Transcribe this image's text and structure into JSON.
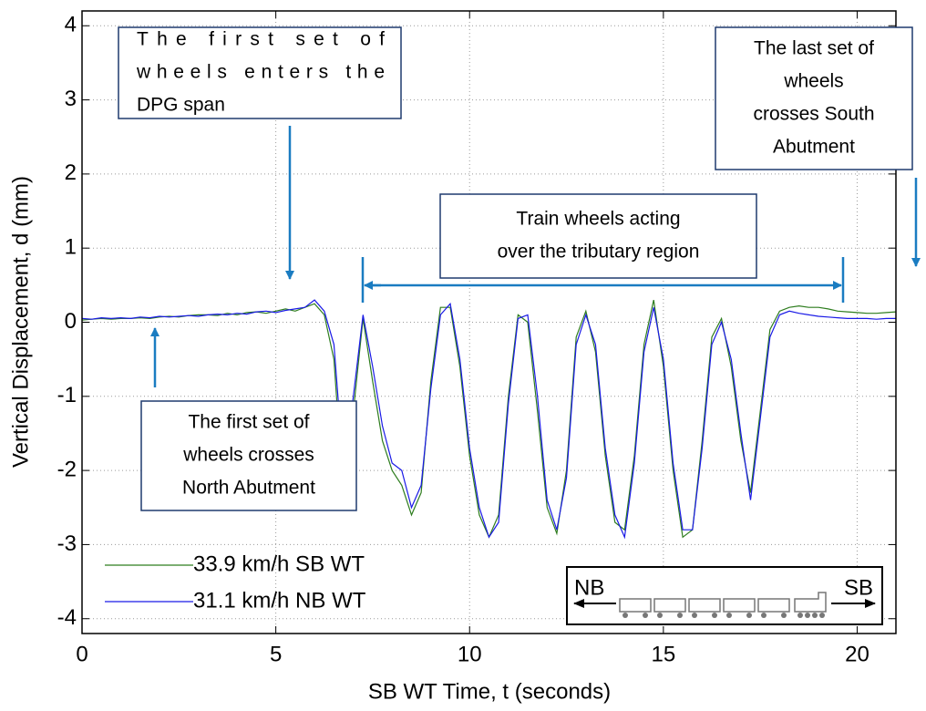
{
  "chart_data": {
    "type": "line",
    "xlabel": "SB WT Time, t (seconds)",
    "ylabel": "Vertical Displacement, d (mm)",
    "xlim": [
      0,
      21
    ],
    "ylim": [
      -4.2,
      4.2
    ],
    "xticks": [
      0,
      5,
      10,
      15,
      20
    ],
    "yticks": [
      -4,
      -3,
      -2,
      -1,
      0,
      1,
      2,
      3,
      4
    ],
    "grid": true,
    "legend": "lower left",
    "x": [
      0,
      0.25,
      0.5,
      0.75,
      1,
      1.25,
      1.5,
      1.75,
      2,
      2.25,
      2.5,
      2.75,
      3,
      3.25,
      3.5,
      3.75,
      4,
      4.25,
      4.5,
      4.75,
      5,
      5.25,
      5.5,
      5.75,
      6,
      6.25,
      6.5,
      6.75,
      7,
      7.25,
      7.5,
      7.75,
      8,
      8.25,
      8.5,
      8.75,
      9,
      9.25,
      9.5,
      9.75,
      10,
      10.25,
      10.5,
      10.75,
      11,
      11.25,
      11.5,
      11.75,
      12,
      12.25,
      12.5,
      12.75,
      13,
      13.25,
      13.5,
      13.75,
      14,
      14.25,
      14.5,
      14.75,
      15,
      15.25,
      15.5,
      15.75,
      16,
      16.25,
      16.5,
      16.75,
      17,
      17.25,
      17.5,
      17.75,
      18,
      18.25,
      18.5,
      18.75,
      19,
      19.25,
      19.5,
      19.75,
      20,
      20.25,
      20.5,
      20.75,
      21
    ],
    "series": [
      {
        "name": "33.9 km/h SB WT",
        "color": "#2e7d1e",
        "values": [
          0.03,
          0.04,
          0.05,
          0.04,
          0.05,
          0.05,
          0.06,
          0.05,
          0.07,
          0.08,
          0.07,
          0.09,
          0.1,
          0.1,
          0.09,
          0.12,
          0.1,
          0.13,
          0.14,
          0.12,
          0.15,
          0.18,
          0.15,
          0.2,
          0.25,
          0.1,
          -0.5,
          -2.4,
          -1.2,
          0.05,
          -0.8,
          -1.6,
          -2.0,
          -2.2,
          -2.6,
          -2.3,
          -0.8,
          0.2,
          0.2,
          -0.6,
          -1.8,
          -2.6,
          -2.9,
          -2.6,
          -1.0,
          0.1,
          0.0,
          -1.2,
          -2.5,
          -2.85,
          -2.0,
          -0.2,
          0.15,
          -0.4,
          -1.8,
          -2.7,
          -2.8,
          -1.8,
          -0.3,
          0.3,
          -0.6,
          -2.0,
          -2.9,
          -2.8,
          -1.6,
          -0.2,
          0.05,
          -0.6,
          -1.6,
          -2.3,
          -1.2,
          -0.1,
          0.15,
          0.2,
          0.22,
          0.2,
          0.2,
          0.18,
          0.15,
          0.14,
          0.13,
          0.12,
          0.12,
          0.13,
          0.14
        ]
      },
      {
        "name": "31.1 km/h NB WT",
        "color": "#1a1ae6",
        "values": [
          0.05,
          0.04,
          0.06,
          0.05,
          0.06,
          0.05,
          0.07,
          0.06,
          0.08,
          0.07,
          0.08,
          0.09,
          0.08,
          0.1,
          0.11,
          0.1,
          0.12,
          0.11,
          0.14,
          0.15,
          0.13,
          0.16,
          0.18,
          0.2,
          0.3,
          0.15,
          -0.3,
          -2.0,
          -1.0,
          0.1,
          -0.6,
          -1.4,
          -1.9,
          -2.0,
          -2.5,
          -2.2,
          -0.9,
          0.1,
          0.25,
          -0.5,
          -1.7,
          -2.5,
          -2.9,
          -2.7,
          -1.1,
          0.05,
          0.1,
          -1.0,
          -2.4,
          -2.8,
          -2.1,
          -0.3,
          0.1,
          -0.3,
          -1.7,
          -2.6,
          -2.9,
          -1.9,
          -0.4,
          0.2,
          -0.5,
          -1.9,
          -2.8,
          -2.8,
          -1.7,
          -0.3,
          0.0,
          -0.5,
          -1.5,
          -2.4,
          -1.3,
          -0.2,
          0.1,
          0.15,
          0.12,
          0.1,
          0.08,
          0.07,
          0.06,
          0.05,
          0.05,
          0.05,
          0.04,
          0.05,
          0.05
        ]
      }
    ],
    "annotations": [
      {
        "text": [
          "The first set of",
          "wheels enters the",
          "DPG span"
        ]
      },
      {
        "text": [
          "The first set of",
          "wheels crosses",
          "North Abutment"
        ]
      },
      {
        "text": [
          "The last set of",
          "wheels",
          "crosses South",
          "Abutment"
        ]
      },
      {
        "text": [
          "Train wheels acting",
          "over the tributary region"
        ]
      }
    ],
    "direction_labels": [
      "NB",
      "SB"
    ]
  }
}
